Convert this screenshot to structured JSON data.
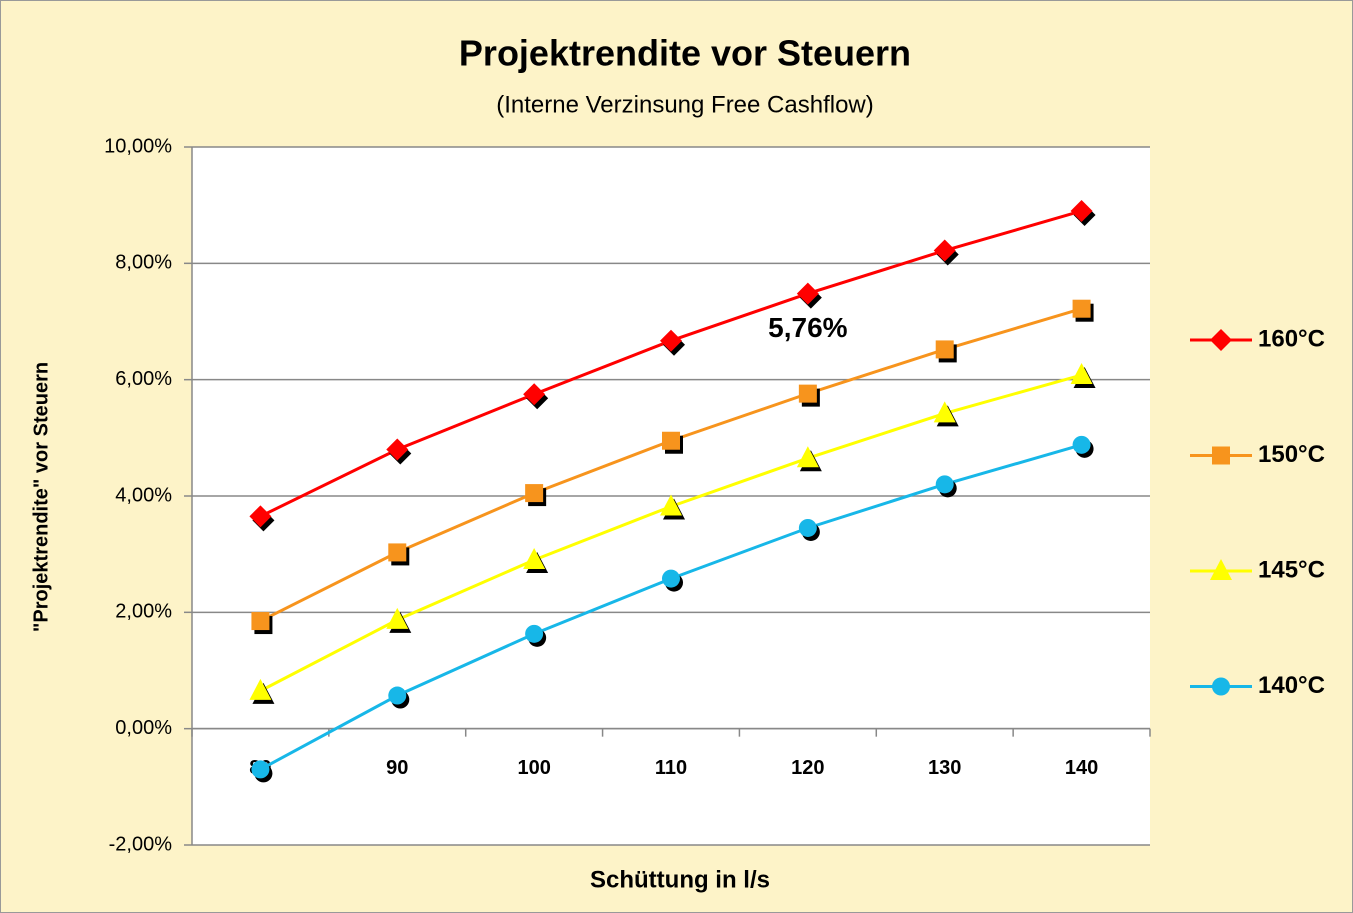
{
  "chart_data": {
    "type": "line",
    "title": "Projektrendite vor Steuern",
    "subtitle": "(Interne Verzinsung Free Cashflow)",
    "x_label": "Schüttung in l/s",
    "y_label": "\"Projektrendite\" vor Steuern",
    "annotation": "5,76%",
    "categories": [
      "80",
      "90",
      "100",
      "110",
      "120",
      "130",
      "140"
    ],
    "series": [
      {
        "name": "160°C",
        "color": "#ff0000",
        "marker": "diamond",
        "values": [
          3.65,
          4.8,
          5.75,
          6.67,
          7.48,
          8.22,
          8.9
        ]
      },
      {
        "name": "150°C",
        "color": "#f7941d",
        "marker": "square",
        "values": [
          1.85,
          3.03,
          4.05,
          4.95,
          5.76,
          6.52,
          7.22
        ]
      },
      {
        "name": "145°C",
        "color": "#ffff00",
        "marker": "triangle",
        "values": [
          0.65,
          1.87,
          2.9,
          3.82,
          4.65,
          5.42,
          6.08
        ]
      },
      {
        "name": "140°C",
        "color": "#17b7e8",
        "marker": "circle",
        "values": [
          -0.7,
          0.57,
          1.63,
          2.58,
          3.45,
          4.2,
          4.88
        ]
      }
    ],
    "ylim": [
      -2,
      10
    ],
    "yticks": [
      {
        "value": -2,
        "label": "-2,00%"
      },
      {
        "value": 0,
        "label": "0,00%"
      },
      {
        "value": 2,
        "label": "2,00%"
      },
      {
        "value": 4,
        "label": "4,00%"
      },
      {
        "value": 6,
        "label": "6,00%"
      },
      {
        "value": 8,
        "label": "8,00%"
      },
      {
        "value": 10,
        "label": "10,00%"
      }
    ],
    "grid": true,
    "legend": "right"
  }
}
